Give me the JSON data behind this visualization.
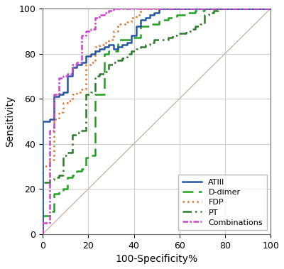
{
  "title": "",
  "xlabel": "100-Specificity%",
  "ylabel": "Sensitivity",
  "xlim": [
    0,
    100
  ],
  "ylim": [
    0,
    100
  ],
  "xticks": [
    0,
    20,
    40,
    60,
    80,
    100
  ],
  "yticks": [
    0,
    20,
    40,
    60,
    80,
    100
  ],
  "background_color": "#ffffff",
  "grid_color": "#cccccc",
  "reference_line_color": "#c8b8a8",
  "curves": {
    "ATIII": {
      "color": "#2655a0",
      "linestyle": "solid",
      "linewidth": 1.8,
      "x": [
        0,
        0,
        3,
        3,
        5,
        5,
        7,
        7,
        9,
        9,
        11,
        11,
        13,
        13,
        15,
        15,
        17,
        17,
        19,
        19,
        21,
        21,
        23,
        23,
        25,
        25,
        27,
        27,
        29,
        29,
        31,
        31,
        33,
        33,
        35,
        35,
        37,
        37,
        39,
        39,
        41,
        41,
        43,
        43,
        45,
        45,
        47,
        47,
        49,
        49,
        51,
        51,
        100
      ],
      "y": [
        0,
        50,
        50,
        51,
        51,
        61,
        61,
        62,
        62,
        63,
        63,
        70,
        70,
        74,
        74,
        75,
        75,
        76,
        76,
        79,
        79,
        80,
        80,
        81,
        81,
        82,
        82,
        83,
        83,
        84,
        84,
        82,
        82,
        83,
        83,
        84,
        84,
        85,
        85,
        88,
        88,
        92,
        92,
        95,
        95,
        96,
        96,
        97,
        97,
        98,
        98,
        100,
        100
      ]
    },
    "D-dimer": {
      "color": "#22a022",
      "linestyle": "dashed",
      "linewidth": 1.8,
      "dashes": [
        6,
        3
      ],
      "x": [
        0,
        0,
        3,
        3,
        5,
        5,
        7,
        7,
        9,
        9,
        11,
        11,
        13,
        13,
        15,
        15,
        17,
        17,
        19,
        19,
        21,
        21,
        23,
        23,
        27,
        27,
        29,
        29,
        33,
        33,
        39,
        39,
        43,
        43,
        47,
        47,
        51,
        51,
        55,
        55,
        59,
        59,
        63,
        63,
        67,
        67,
        71,
        71,
        75,
        75,
        79,
        79,
        83,
        83,
        100
      ],
      "y": [
        0,
        8,
        8,
        10,
        10,
        18,
        18,
        19,
        19,
        20,
        20,
        25,
        25,
        26,
        26,
        28,
        28,
        29,
        29,
        34,
        34,
        35,
        35,
        62,
        62,
        80,
        80,
        81,
        81,
        86,
        86,
        87,
        87,
        92,
        92,
        93,
        93,
        95,
        95,
        96,
        96,
        97,
        97,
        98,
        98,
        99,
        99,
        100,
        100,
        100,
        100,
        100,
        100,
        100,
        100
      ]
    },
    "FDP": {
      "color": "#e07830",
      "linestyle": "dotted",
      "linewidth": 1.8,
      "x": [
        0,
        0,
        3,
        3,
        5,
        5,
        7,
        7,
        9,
        9,
        11,
        11,
        13,
        13,
        15,
        15,
        17,
        17,
        19,
        19,
        21,
        21,
        23,
        23,
        25,
        25,
        27,
        27,
        29,
        29,
        31,
        31,
        33,
        33,
        37,
        37,
        39,
        39,
        41,
        41,
        43,
        43,
        100
      ],
      "y": [
        0,
        30,
        30,
        33,
        33,
        51,
        51,
        54,
        54,
        58,
        58,
        59,
        59,
        62,
        62,
        63,
        63,
        64,
        64,
        75,
        75,
        76,
        76,
        83,
        83,
        84,
        84,
        85,
        85,
        86,
        86,
        90,
        90,
        93,
        93,
        94,
        94,
        96,
        96,
        97,
        97,
        100,
        100
      ]
    },
    "PT": {
      "color": "#2a7a2a",
      "linestyle": "dashdot",
      "linewidth": 1.8,
      "x": [
        0,
        0,
        3,
        3,
        5,
        5,
        7,
        7,
        9,
        9,
        11,
        11,
        13,
        13,
        15,
        15,
        17,
        17,
        19,
        19,
        21,
        21,
        23,
        23,
        25,
        25,
        27,
        27,
        29,
        29,
        31,
        31,
        33,
        33,
        35,
        35,
        37,
        37,
        39,
        39,
        41,
        41,
        43,
        43,
        45,
        45,
        47,
        47,
        49,
        49,
        55,
        55,
        57,
        57,
        59,
        59,
        63,
        63,
        65,
        65,
        67,
        67,
        69,
        69,
        71,
        71,
        73,
        73,
        75,
        75,
        77,
        77,
        79,
        79,
        83,
        83,
        85,
        85,
        87,
        87,
        89,
        89,
        91,
        91,
        93,
        93,
        95,
        95,
        100
      ],
      "y": [
        0,
        23,
        23,
        24,
        24,
        25,
        25,
        26,
        26,
        35,
        35,
        36,
        36,
        44,
        44,
        45,
        45,
        46,
        46,
        62,
        62,
        63,
        63,
        70,
        70,
        71,
        71,
        72,
        72,
        75,
        75,
        76,
        76,
        77,
        77,
        78,
        78,
        80,
        80,
        81,
        81,
        82,
        82,
        83,
        83,
        84,
        84,
        85,
        85,
        86,
        86,
        87,
        87,
        88,
        88,
        89,
        89,
        90,
        90,
        91,
        91,
        92,
        92,
        93,
        93,
        97,
        97,
        98,
        98,
        99,
        99,
        100,
        100,
        100,
        100,
        100,
        100,
        100,
        100,
        100,
        100,
        100,
        100,
        100,
        100,
        100,
        100,
        100,
        100
      ]
    },
    "Combinations": {
      "color": "#cc44cc",
      "linestyle": "dashdot",
      "linewidth": 1.8,
      "x": [
        0,
        0,
        3,
        3,
        5,
        5,
        7,
        7,
        9,
        9,
        11,
        11,
        13,
        13,
        15,
        15,
        17,
        17,
        19,
        19,
        21,
        21,
        23,
        23,
        25,
        25,
        27,
        27,
        29,
        29,
        31,
        31,
        100
      ],
      "y": [
        0,
        5,
        5,
        46,
        46,
        62,
        62,
        69,
        69,
        70,
        70,
        71,
        71,
        75,
        75,
        76,
        76,
        88,
        88,
        90,
        90,
        91,
        91,
        96,
        96,
        97,
        97,
        98,
        98,
        99,
        99,
        100,
        100
      ]
    }
  },
  "legend_loc": "lower right",
  "legend_entries": [
    "ATIII",
    "D-dimer",
    "FDP",
    "PT",
    "Combinations"
  ],
  "legend_styles": {
    "ATIII": {
      "ls": "solid",
      "dashes": null
    },
    "D-dimer": {
      "ls": "dashed",
      "dashes": [
        6,
        3
      ]
    },
    "FDP": {
      "ls": "dotted",
      "dashes": null
    },
    "PT": {
      "ls": [
        0,
        [
          6,
          2,
          2,
          2
        ]
      ],
      "dashes": null
    },
    "Combinations": {
      "ls": [
        0,
        [
          4,
          2,
          1,
          2
        ]
      ],
      "dashes": null
    }
  }
}
